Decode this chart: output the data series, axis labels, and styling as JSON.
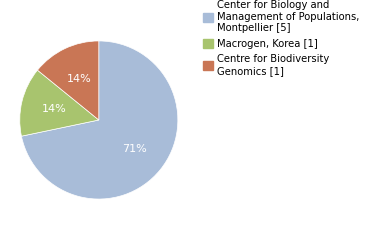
{
  "slices": [
    71,
    14,
    14
  ],
  "colors": [
    "#a8bcd8",
    "#a8c46e",
    "#c97655"
  ],
  "labels": [
    "71%",
    "14%",
    "14%"
  ],
  "legend_labels": [
    "Center for Biology and\nManagement of Populations,\nMontpellier [5]",
    "Macrogen, Korea [1]",
    "Centre for Biodiversity\nGenomics [1]"
  ],
  "startangle": 90,
  "font_size": 8.0,
  "legend_font_size": 7.2,
  "background_color": "#ffffff"
}
